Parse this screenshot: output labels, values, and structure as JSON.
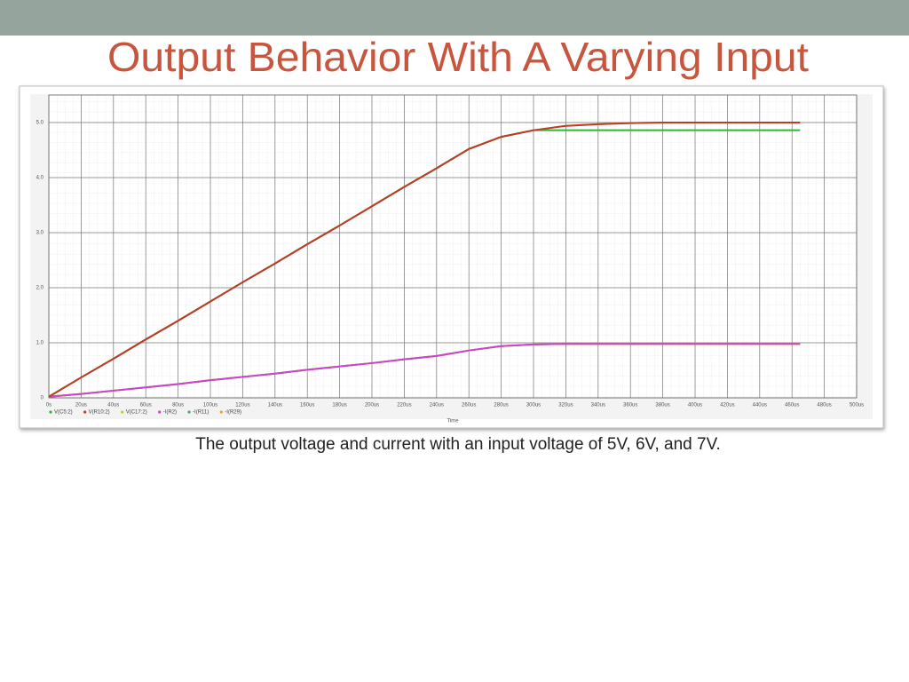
{
  "slide_title": "Output Behavior With A Varying Input",
  "caption": "The output voltage and current with an input voltage of 5V, 6V, and 7V.",
  "chart_data": {
    "type": "line",
    "xlabel": "Time",
    "grid": true,
    "legend": "bottom",
    "x": [
      0,
      20,
      40,
      60,
      80,
      100,
      120,
      140,
      160,
      180,
      200,
      220,
      240,
      260,
      280,
      300,
      320,
      340,
      360,
      380,
      400,
      420,
      440,
      465
    ],
    "xlim": [
      0,
      500
    ],
    "xticks": [
      {
        "value": 0,
        "label": "0s"
      },
      {
        "value": 20,
        "label": "20us"
      },
      {
        "value": 40,
        "label": "40us"
      },
      {
        "value": 60,
        "label": "60us"
      },
      {
        "value": 80,
        "label": "80us"
      },
      {
        "value": 100,
        "label": "100us"
      },
      {
        "value": 120,
        "label": "120us"
      },
      {
        "value": 140,
        "label": "140us"
      },
      {
        "value": 160,
        "label": "160us"
      },
      {
        "value": 180,
        "label": "180us"
      },
      {
        "value": 200,
        "label": "200us"
      },
      {
        "value": 220,
        "label": "220us"
      },
      {
        "value": 240,
        "label": "240us"
      },
      {
        "value": 260,
        "label": "260us"
      },
      {
        "value": 280,
        "label": "280us"
      },
      {
        "value": 300,
        "label": "300us"
      },
      {
        "value": 320,
        "label": "320us"
      },
      {
        "value": 340,
        "label": "340us"
      },
      {
        "value": 360,
        "label": "360us"
      },
      {
        "value": 380,
        "label": "380us"
      },
      {
        "value": 400,
        "label": "400us"
      },
      {
        "value": 420,
        "label": "420us"
      },
      {
        "value": 440,
        "label": "440us"
      },
      {
        "value": 460,
        "label": "460us"
      },
      {
        "value": 480,
        "label": "480us"
      },
      {
        "value": 500,
        "label": "500us"
      }
    ],
    "ylim": [
      0,
      5.5
    ],
    "yticks": [
      0,
      {
        "value": 1,
        "label": "1.0"
      },
      {
        "value": 2,
        "label": "2.0"
      },
      {
        "value": 3,
        "label": "3.0"
      },
      {
        "value": 4,
        "label": "4.0"
      },
      {
        "value": 5,
        "label": "5.0"
      }
    ],
    "series": [
      {
        "name": "V(C5:2)",
        "color": "#2eb82e",
        "values": [
          0.02,
          0.37,
          0.71,
          1.06,
          1.4,
          1.75,
          2.1,
          2.44,
          2.79,
          3.13,
          3.48,
          3.83,
          4.17,
          4.52,
          4.74,
          4.86,
          4.86,
          4.86,
          4.86,
          4.86,
          4.86,
          4.86,
          4.86,
          4.86
        ]
      },
      {
        "name": "V(R10:2)",
        "color": "#c0392b",
        "values": [
          0.02,
          0.37,
          0.71,
          1.06,
          1.4,
          1.75,
          2.1,
          2.44,
          2.79,
          3.13,
          3.48,
          3.83,
          4.17,
          4.52,
          4.74,
          4.86,
          4.94,
          4.97,
          4.99,
          5.0,
          5.0,
          5.0,
          5.0,
          5.0
        ]
      },
      {
        "name": "V(C17:2)",
        "color": "#c8c83a",
        "values": [
          0.02,
          0.37,
          0.71,
          1.06,
          1.4,
          1.75,
          2.1,
          2.44,
          2.79,
          3.13,
          3.48,
          3.83,
          4.17,
          4.52,
          4.74,
          4.86,
          4.94,
          4.97,
          4.99,
          5.0,
          5.0,
          5.0,
          5.0,
          5.0
        ]
      },
      {
        "name": "-I(R2)",
        "color": "#cc44cc",
        "values": [
          0.02,
          0.07,
          0.13,
          0.19,
          0.25,
          0.32,
          0.38,
          0.44,
          0.51,
          0.57,
          0.63,
          0.7,
          0.76,
          0.86,
          0.94,
          0.97,
          0.98,
          0.98,
          0.98,
          0.98,
          0.98,
          0.98,
          0.98,
          0.98
        ]
      },
      {
        "name": "-I(R11)",
        "color": "#44aa66",
        "values": [
          0.02,
          0.07,
          0.13,
          0.19,
          0.25,
          0.32,
          0.38,
          0.44,
          0.51,
          0.57,
          0.63,
          0.7,
          0.76,
          0.86,
          0.94,
          0.97,
          0.98,
          0.98,
          0.98,
          0.98,
          0.98,
          0.98,
          0.98,
          0.98
        ]
      },
      {
        "name": "-I(R29)",
        "color": "#e8a040",
        "values": [
          0.02,
          0.07,
          0.13,
          0.19,
          0.25,
          0.32,
          0.38,
          0.44,
          0.51,
          0.57,
          0.63,
          0.7,
          0.76,
          0.86,
          0.94,
          0.97,
          0.98,
          0.98,
          0.98,
          0.98,
          0.98,
          0.98,
          0.98,
          0.98
        ]
      }
    ]
  }
}
